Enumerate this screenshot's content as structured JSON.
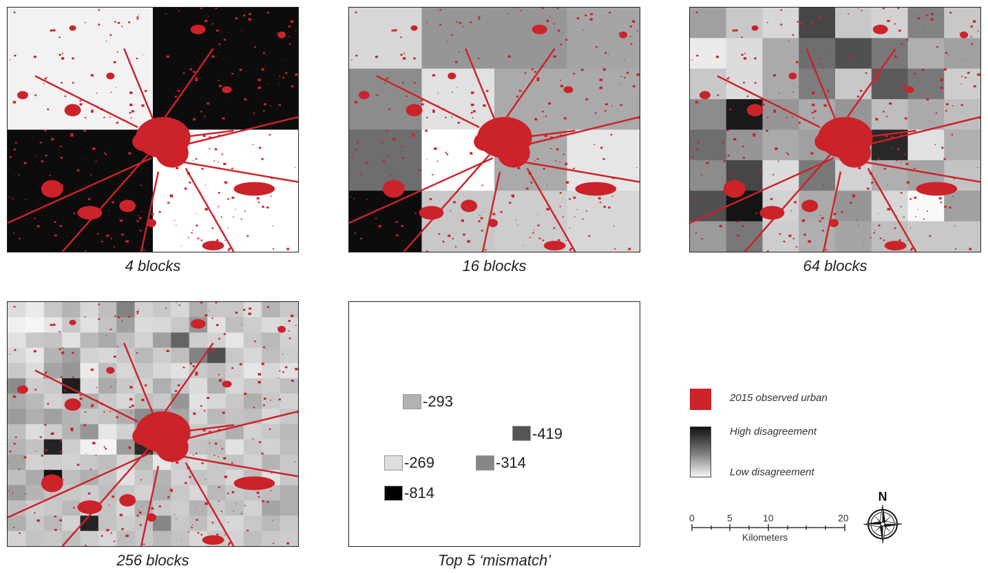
{
  "panels": [
    {
      "caption": "4 blocks",
      "grid": [
        2,
        2
      ],
      "shades": [
        [
          242,
          12
        ],
        [
          12,
          255
        ]
      ]
    },
    {
      "caption": "16 blocks",
      "grid": [
        4,
        4
      ],
      "shades": [
        [
          215,
          150,
          150,
          165
        ],
        [
          140,
          225,
          170,
          170
        ],
        [
          110,
          255,
          170,
          230
        ],
        [
          12,
          200,
          205,
          215
        ]
      ]
    },
    {
      "caption": "64 blocks",
      "grid": [
        8,
        8
      ],
      "shades": [
        [
          160,
          200,
          215,
          70,
          200,
          210,
          130,
          200
        ],
        [
          235,
          220,
          170,
          110,
          80,
          120,
          175,
          160
        ],
        [
          200,
          220,
          170,
          125,
          200,
          90,
          120,
          205
        ],
        [
          140,
          25,
          150,
          170,
          150,
          190,
          170,
          190
        ],
        [
          110,
          150,
          170,
          160,
          175,
          40,
          225,
          175
        ],
        [
          140,
          70,
          220,
          120,
          210,
          175,
          165,
          195
        ],
        [
          80,
          20,
          210,
          170,
          150,
          215,
          250,
          160
        ],
        [
          155,
          120,
          205,
          175,
          165,
          190,
          200,
          200
        ]
      ]
    },
    {
      "caption": "256 blocks",
      "grid": [
        16,
        16
      ],
      "shades": [
        [
          220,
          235,
          200,
          180,
          215,
          190,
          130,
          210,
          200,
          215,
          175,
          200,
          200,
          220,
          180,
          200
        ],
        [
          240,
          245,
          230,
          200,
          225,
          195,
          160,
          220,
          215,
          200,
          150,
          225,
          190,
          205,
          220,
          215
        ],
        [
          225,
          200,
          195,
          225,
          185,
          170,
          190,
          210,
          160,
          100,
          205,
          210,
          230,
          200,
          185,
          210
        ],
        [
          215,
          230,
          180,
          160,
          210,
          215,
          200,
          185,
          205,
          190,
          130,
          80,
          200,
          215,
          190,
          205
        ],
        [
          200,
          220,
          165,
          150,
          235,
          190,
          215,
          200,
          215,
          225,
          200,
          190,
          210,
          230,
          215,
          225
        ],
        [
          140,
          205,
          200,
          30,
          220,
          170,
          200,
          210,
          175,
          200,
          220,
          175,
          215,
          200,
          205,
          190
        ],
        [
          170,
          185,
          210,
          200,
          175,
          200,
          215,
          190,
          200,
          150,
          225,
          215,
          200,
          175,
          200,
          210
        ],
        [
          155,
          175,
          160,
          180,
          200,
          195,
          175,
          140,
          155,
          165,
          215,
          185,
          195,
          190,
          215,
          200
        ],
        [
          190,
          220,
          205,
          180,
          150,
          230,
          210,
          160,
          185,
          210,
          200,
          200,
          175,
          210,
          200,
          185
        ],
        [
          180,
          195,
          35,
          205,
          240,
          245,
          155,
          40,
          150,
          210,
          195,
          190,
          225,
          200,
          210,
          190
        ],
        [
          165,
          210,
          205,
          210,
          200,
          190,
          215,
          185,
          230,
          205,
          220,
          200,
          195,
          210,
          180,
          200
        ],
        [
          190,
          170,
          20,
          190,
          175,
          195,
          225,
          200,
          180,
          210,
          195,
          200,
          215,
          190,
          225,
          200
        ],
        [
          155,
          180,
          195,
          200,
          205,
          190,
          200,
          210,
          175,
          200,
          215,
          185,
          200,
          195,
          190,
          175
        ],
        [
          190,
          205,
          200,
          185,
          210,
          195,
          215,
          175,
          200,
          205,
          180,
          200,
          190,
          210,
          165,
          175
        ],
        [
          175,
          200,
          185,
          210,
          35,
          195,
          205,
          195,
          135,
          200,
          190,
          210,
          215,
          200,
          185,
          200
        ],
        [
          210,
          195,
          200,
          190,
          205,
          215,
          190,
          200,
          185,
          195,
          215,
          200,
          210,
          190,
          200,
          205
        ]
      ]
    }
  ],
  "mismatch": {
    "caption": "Top 5 ‘mismatch’",
    "items": [
      {
        "value": "-293",
        "shade": 178
      },
      {
        "value": "-419",
        "shade": 85
      },
      {
        "value": "-269",
        "shade": 222
      },
      {
        "value": "-314",
        "shade": 135
      },
      {
        "value": "-814",
        "shade": 0
      }
    ]
  },
  "legend": {
    "urban_label": "2015 observed urban",
    "urban_color": "#cc2229",
    "high_label": "High disagreement",
    "low_label": "Low disagreement"
  },
  "scale": {
    "ticks": [
      "0",
      "5",
      "10",
      "20"
    ],
    "unit": "Kilometers"
  },
  "north_label": "N"
}
